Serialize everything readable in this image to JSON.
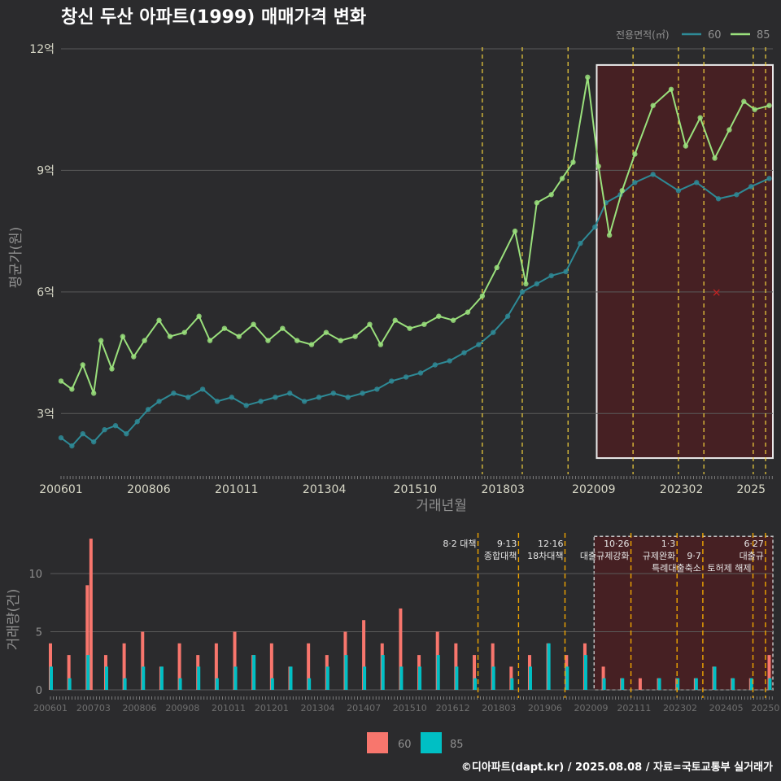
{
  "title": "창신 두산 아파트(1999) 매매가격 변화",
  "legend_top": {
    "title": "전용면적(㎡)",
    "items": [
      "60",
      "85"
    ]
  },
  "legend_bottom": {
    "items": [
      "60",
      "85"
    ]
  },
  "footer": "©디아파트(dapt.kr) / 2025.08.08 / 자료=국토교통부 실거래가",
  "colors": {
    "bg": "#2b2b2d",
    "grid": "#5a5a5a",
    "s60_line": "#2e8a96",
    "s85_line": "#9ae07c",
    "bar60": "#f8766d",
    "bar85": "#00bfc4",
    "vline": "#f5d33d",
    "vline_bottom": "#f0a500",
    "highlight_fill": "#4a1f22",
    "highlight_stroke": "#ffffff",
    "text_main": "#ffffff",
    "text_axis": "#d9d9c8",
    "text_muted": "#8f8f8f",
    "marker": "#cc2222"
  },
  "chart_data": [
    {
      "type": "line",
      "title": "창신 두산 아파트(1999) 매매가격 변화",
      "xlabel": "거래년월",
      "ylabel": "평균가(원)",
      "x_tick_labels": [
        "200601",
        "200806",
        "201011",
        "201304",
        "201510",
        "201803",
        "202009",
        "202302",
        "2025"
      ],
      "x_tick_years": [
        2006.0,
        2008.417,
        2010.833,
        2013.25,
        2015.75,
        2018.167,
        2020.667,
        2023.083,
        2025.0
      ],
      "y_tick_labels": [
        "3억",
        "6억",
        "9억",
        "12억"
      ],
      "y_tick_values": [
        3.0,
        6.0,
        9.0,
        12.0
      ],
      "ylim": [
        1.5,
        12.2
      ],
      "xlim": [
        2006.0,
        2025.6
      ],
      "grid": true,
      "legend_position": "top-right",
      "highlight_region": {
        "x": [
          2020.75,
          2025.6
        ],
        "y": [
          1.9,
          11.6
        ]
      },
      "vlines": [
        2017.6,
        2018.7,
        2019.96,
        2021.75,
        2023.0,
        2023.7,
        2025.06,
        2025.4
      ],
      "marker": {
        "x": 2024.05,
        "y": 6.0,
        "symbol": "×"
      },
      "series": [
        {
          "name": "85",
          "x": [
            2006.0,
            2006.3,
            2006.6,
            2006.9,
            2007.1,
            2007.4,
            2007.7,
            2008.0,
            2008.3,
            2008.7,
            2009.0,
            2009.4,
            2009.8,
            2010.1,
            2010.5,
            2010.9,
            2011.3,
            2011.7,
            2012.1,
            2012.5,
            2012.9,
            2013.3,
            2013.7,
            2014.1,
            2014.5,
            2014.8,
            2015.2,
            2015.6,
            2016.0,
            2016.4,
            2016.8,
            2017.2,
            2017.6,
            2018.0,
            2018.5,
            2018.8,
            2019.1,
            2019.5,
            2019.8,
            2020.1,
            2020.5,
            2020.8,
            2021.1,
            2021.45,
            2021.8,
            2022.3,
            2022.8,
            2023.2,
            2023.6,
            2024.0,
            2024.4,
            2024.8,
            2025.1,
            2025.5
          ],
          "values": [
            3.8,
            3.6,
            4.2,
            3.5,
            4.8,
            4.1,
            4.9,
            4.4,
            4.8,
            5.3,
            4.9,
            5.0,
            5.4,
            4.8,
            5.1,
            4.9,
            5.2,
            4.8,
            5.1,
            4.8,
            4.7,
            5.0,
            4.8,
            4.9,
            5.2,
            4.7,
            5.3,
            5.1,
            5.2,
            5.4,
            5.3,
            5.5,
            5.9,
            6.6,
            7.5,
            6.2,
            8.2,
            8.4,
            8.8,
            9.2,
            11.3,
            9.1,
            7.4,
            8.5,
            9.4,
            10.6,
            11.0,
            9.6,
            10.3,
            9.3,
            10.0,
            10.7,
            10.5,
            10.6
          ]
        },
        {
          "name": "60",
          "x": [
            2006.0,
            2006.3,
            2006.6,
            2006.9,
            2007.2,
            2007.5,
            2007.8,
            2008.1,
            2008.4,
            2008.7,
            2009.1,
            2009.5,
            2009.9,
            2010.3,
            2010.7,
            2011.1,
            2011.5,
            2011.9,
            2012.3,
            2012.7,
            2013.1,
            2013.5,
            2013.9,
            2014.3,
            2014.7,
            2015.1,
            2015.5,
            2015.9,
            2016.3,
            2016.7,
            2017.1,
            2017.5,
            2017.9,
            2018.3,
            2018.7,
            2019.1,
            2019.5,
            2019.9,
            2020.3,
            2020.7,
            2021.0,
            2021.4,
            2021.8,
            2022.3,
            2023.0,
            2023.5,
            2024.1,
            2024.6,
            2025.0,
            2025.5
          ],
          "values": [
            2.4,
            2.2,
            2.5,
            2.3,
            2.6,
            2.7,
            2.5,
            2.8,
            3.1,
            3.3,
            3.5,
            3.4,
            3.6,
            3.3,
            3.4,
            3.2,
            3.3,
            3.4,
            3.5,
            3.3,
            3.4,
            3.5,
            3.4,
            3.5,
            3.6,
            3.8,
            3.9,
            4.0,
            4.2,
            4.3,
            4.5,
            4.7,
            5.0,
            5.4,
            6.0,
            6.2,
            6.4,
            6.5,
            7.2,
            7.6,
            8.2,
            8.4,
            8.7,
            8.9,
            8.5,
            8.7,
            8.3,
            8.4,
            8.6,
            8.8
          ]
        }
      ]
    },
    {
      "type": "bar",
      "xlabel": "",
      "ylabel": "거래량(건)",
      "x_tick_labels": [
        "200601",
        "200703",
        "200806",
        "200908",
        "201011",
        "201201",
        "201304",
        "201407",
        "201510",
        "201612",
        "201803",
        "201906",
        "202009",
        "202111",
        "202302",
        "202405",
        "20250"
      ],
      "x_tick_years": [
        2006.0,
        2007.167,
        2008.417,
        2009.583,
        2010.833,
        2012.0,
        2013.25,
        2014.5,
        2015.75,
        2016.917,
        2018.167,
        2019.417,
        2020.667,
        2021.833,
        2023.083,
        2024.333,
        2025.4
      ],
      "y_tick_labels": [
        "0",
        "5",
        "10"
      ],
      "y_tick_values": [
        0,
        5,
        10
      ],
      "ylim": [
        0,
        13.5
      ],
      "xlim": [
        2006.0,
        2025.6
      ],
      "grid": true,
      "legend_position": "bottom",
      "highlight_region": {
        "x": [
          2020.75,
          2025.6
        ],
        "y": [
          0,
          13.2
        ]
      },
      "policy_lines": [
        {
          "x": 2017.6,
          "labels": [
            "8·2 대책"
          ]
        },
        {
          "x": 2018.7,
          "labels": [
            "9·13",
            "종합대책"
          ]
        },
        {
          "x": 2019.96,
          "labels": [
            "12·16",
            "18차대책"
          ]
        },
        {
          "x": 2021.75,
          "labels": [
            "10·26",
            "대출규제강화"
          ]
        },
        {
          "x": 2023.0,
          "labels": [
            "1·3",
            "규제완화"
          ]
        },
        {
          "x": 2023.7,
          "labels": [
            "9·7",
            "특례대출축소"
          ]
        },
        {
          "x": 2025.06,
          "labels": [
            "",
            "토허제 해제"
          ]
        },
        {
          "x": 2025.4,
          "labels": [
            "6·27",
            "대출규"
          ]
        }
      ],
      "series": [
        {
          "name": "60",
          "x": [
            2006.0,
            2006.5,
            2007.0,
            2007.1,
            2007.5,
            2008.0,
            2008.5,
            2009.0,
            2009.5,
            2010.0,
            2010.5,
            2011.0,
            2011.5,
            2012.0,
            2012.5,
            2013.0,
            2013.5,
            2014.0,
            2014.5,
            2015.0,
            2015.5,
            2016.0,
            2016.5,
            2017.0,
            2017.5,
            2018.0,
            2018.5,
            2019.0,
            2019.5,
            2020.0,
            2020.5,
            2021.0,
            2021.5,
            2022.0,
            2022.5,
            2023.0,
            2023.5,
            2024.0,
            2024.5,
            2025.0,
            2025.5
          ],
          "values": [
            4,
            3,
            9,
            13,
            3,
            4,
            5,
            2,
            4,
            3,
            4,
            5,
            3,
            4,
            2,
            4,
            3,
            5,
            6,
            4,
            7,
            3,
            5,
            4,
            3,
            4,
            2,
            3,
            4,
            3,
            4,
            2,
            1,
            1,
            1,
            1,
            1,
            2,
            1,
            1,
            3
          ]
        },
        {
          "name": "85",
          "x": [
            2006.0,
            2006.5,
            2007.0,
            2007.5,
            2008.0,
            2008.5,
            2009.0,
            2009.5,
            2010.0,
            2010.5,
            2011.0,
            2011.5,
            2012.0,
            2012.5,
            2013.0,
            2013.5,
            2014.0,
            2014.5,
            2015.0,
            2015.5,
            2016.0,
            2016.5,
            2017.0,
            2017.5,
            2018.0,
            2018.5,
            2019.0,
            2019.5,
            2020.0,
            2020.5,
            2021.0,
            2021.5,
            2022.0,
            2022.5,
            2023.0,
            2023.5,
            2024.0,
            2024.5,
            2025.0,
            2025.5
          ],
          "values": [
            2,
            1,
            3,
            2,
            1,
            2,
            2,
            1,
            2,
            1,
            2,
            3,
            1,
            2,
            1,
            2,
            3,
            2,
            3,
            2,
            2,
            3,
            2,
            1,
            2,
            1,
            2,
            4,
            2,
            3,
            1,
            1,
            0,
            1,
            1,
            1,
            2,
            1,
            1,
            1
          ]
        }
      ]
    }
  ]
}
